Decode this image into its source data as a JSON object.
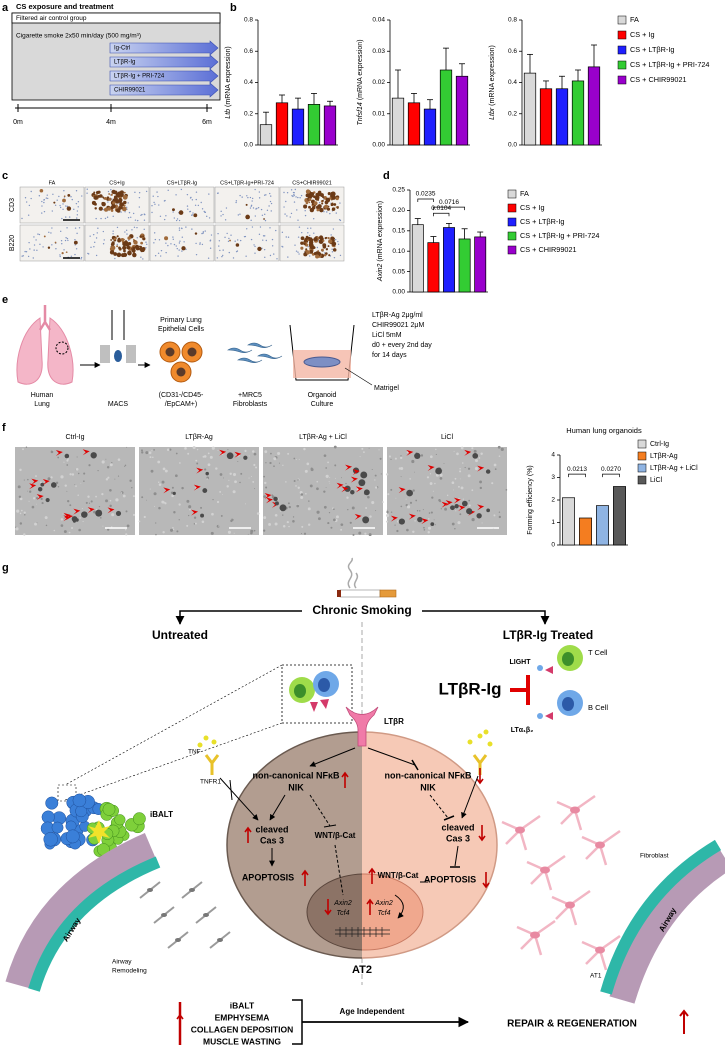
{
  "panel_labels": [
    "a",
    "b",
    "c",
    "d",
    "e",
    "f",
    "g"
  ],
  "panel_a": {
    "title": "CS exposure and treatment",
    "control": "Filtered air control group",
    "smoke": "Cigarette smoke 2x50 min/day (500 mg/m³)",
    "treatments": [
      "Ig-Ctrl",
      "LTβR-Ig",
      "LTβR-Ig + PRI-724",
      "CHIR99021"
    ],
    "timepoints": [
      "0m",
      "4m",
      "6m"
    ]
  },
  "chart_data": [
    {
      "type": "bar",
      "y_label_gene": "Ltb",
      "y_label": "(mRNA expression)",
      "categories": [
        "FA",
        "CS + Ig",
        "CS + LTβR-Ig",
        "CS + LTβR-Ig + PRI-724",
        "CS + CHIR99021"
      ],
      "colors": [
        "#d9d9d9",
        "#ff0000",
        "#1f1fff",
        "#33cc33",
        "#9900cc"
      ],
      "values": [
        0.13,
        0.27,
        0.23,
        0.26,
        0.25
      ],
      "errors": [
        0.08,
        0.05,
        0.07,
        0.07,
        0.03
      ],
      "ylim": [
        0,
        0.8
      ],
      "yticks": [
        {
          "value": 0,
          "label": "0.0"
        },
        0.2,
        0.4,
        0.6,
        0.8
      ]
    },
    {
      "type": "bar",
      "y_label_gene": "Tnfsf14",
      "y_label": "(mRNA expression)",
      "colors": [
        "#d9d9d9",
        "#ff0000",
        "#1f1fff",
        "#33cc33",
        "#9900cc"
      ],
      "values": [
        0.015,
        0.0135,
        0.0115,
        0.024,
        0.022
      ],
      "errors": [
        0.009,
        0.003,
        0.003,
        0.007,
        0.004
      ],
      "ylim": [
        0,
        0.04
      ],
      "yticks": [
        {
          "value": 0,
          "label": "0.00"
        },
        0.01,
        0.02,
        0.03,
        0.04
      ]
    },
    {
      "type": "bar",
      "y_label_gene": "Ltbr",
      "y_label": "(mRNA expression)",
      "colors": [
        "#d9d9d9",
        "#ff0000",
        "#1f1fff",
        "#33cc33",
        "#9900cc"
      ],
      "values": [
        0.46,
        0.36,
        0.36,
        0.41,
        0.5
      ],
      "errors": [
        0.12,
        0.05,
        0.08,
        0.07,
        0.14
      ],
      "ylim": [
        0,
        0.8
      ],
      "yticks": [
        {
          "value": 0,
          "label": "0.0"
        },
        0.2,
        0.4,
        0.6,
        0.8
      ]
    },
    {
      "type": "bar",
      "y_label_gene": "Axin2",
      "y_label": "(mRNA expression)",
      "categories": [
        "FA",
        "CS + Ig",
        "CS + LTβR-Ig",
        "CS + LTβR-Ig + PRI-724",
        "CS + CHIR99021"
      ],
      "colors": [
        "#d9d9d9",
        "#ff0000",
        "#1f1fff",
        "#33cc33",
        "#9900cc"
      ],
      "values": [
        0.165,
        0.121,
        0.158,
        0.13,
        0.135
      ],
      "errors": [
        0.015,
        0.015,
        0.01,
        0.025,
        0.012
      ],
      "ylim": [
        0,
        0.25
      ],
      "yticks": [
        {
          "value": 0,
          "label": "0.00"
        },
        0.05,
        {
          "value": 0.1,
          "label": "0.10"
        },
        0.15,
        {
          "value": 0.2,
          "label": "0.20"
        },
        0.25
      ],
      "annotations": [
        "0.0235",
        "0.0104",
        "0.0716"
      ]
    },
    {
      "type": "bar",
      "title": "Human lung organoids",
      "y_label": "Forming efficiency (%)",
      "categories": [
        "Ctrl-Ig",
        "LTβR-Ag",
        "LTβR-Ag + LiCl",
        "LiCl"
      ],
      "colors": [
        "#d9d9d9",
        "#f47d20",
        "#8fb4e3",
        "#595959"
      ],
      "values": [
        2.1,
        1.2,
        1.75,
        2.6
      ],
      "ylim": [
        0,
        4
      ],
      "yticks": [
        0,
        1,
        2,
        3,
        4
      ],
      "annotations": [
        "0.0213",
        "0.0270"
      ]
    }
  ],
  "panel_c": {
    "columns": [
      "FA",
      "CS+Ig",
      "CS+LTβR-Ig",
      "CS+LTβR-Ig+PRI-724",
      "CS+CHIR99021"
    ],
    "rows": [
      "CD3",
      "B220"
    ]
  },
  "panel_e": {
    "lung": [
      "Human",
      "Lung"
    ],
    "macs": "MACS",
    "cells": [
      "Primary Lung",
      "Epithelial Cells"
    ],
    "markers": [
      "(CD31-/CD45-",
      "/EpCAM+)"
    ],
    "fibro": [
      "+MRC5",
      "Fibroblasts"
    ],
    "culture": [
      "Organoid",
      "Culture"
    ],
    "matrigel": "Matrigel",
    "protocol": [
      "LTβR-Ag 2μg/ml",
      "CHIR99021 2μM",
      "LiCl 5mM",
      "d0 + every 2nd day",
      "for 14 days"
    ]
  },
  "panel_f": {
    "images": [
      "Ctrl-Ig",
      "LTβR-Ag",
      "LTβR-Ag + LiCl",
      "LiCl"
    ]
  },
  "panel_g": {
    "trigger": "Chronic Smoking",
    "untreated": "Untreated",
    "treated": "LTβR-Ig Treated",
    "drug": "LTβR-Ig",
    "light": "LIGHT",
    "t_cell": "T Cell",
    "b_cell": "B Cell",
    "lta": "LTα₁β₂",
    "receptor": "LTβR",
    "tnf": "TNF",
    "tnfr": "TNFR1",
    "ibalt": "iBALT",
    "cell": "AT2",
    "left": {
      "nfkb": "non-canonical NFκB",
      "nik": "NIK",
      "cas": [
        "cleaved",
        "Cas 3"
      ],
      "wnt": "WNT/β-Cat",
      "apoptosis": "APOPTOSIS",
      "genes": [
        "Axin2",
        "Tcf4"
      ]
    },
    "right": {
      "nfkb": "non-canonical NFκB",
      "nik": "NIK",
      "cas": [
        "cleaved",
        "Cas 3"
      ],
      "wnt": "WNT/β-Cat",
      "apoptosis": "APOPTOSIS",
      "genes": [
        "Axin2",
        "Tcf4"
      ]
    },
    "airway_left": "Airway",
    "remodeling": [
      "Airway",
      "Remodeling"
    ],
    "fibroblast": "Fibroblast",
    "at1": "AT1",
    "airway_right": "Airway",
    "outcomes": [
      "iBALT",
      "EMPHYSEMA",
      "COLLAGEN DEPOSITION",
      "MUSCLE WASTING"
    ],
    "age": "Age Independent",
    "result": "REPAIR & REGENERATION"
  }
}
